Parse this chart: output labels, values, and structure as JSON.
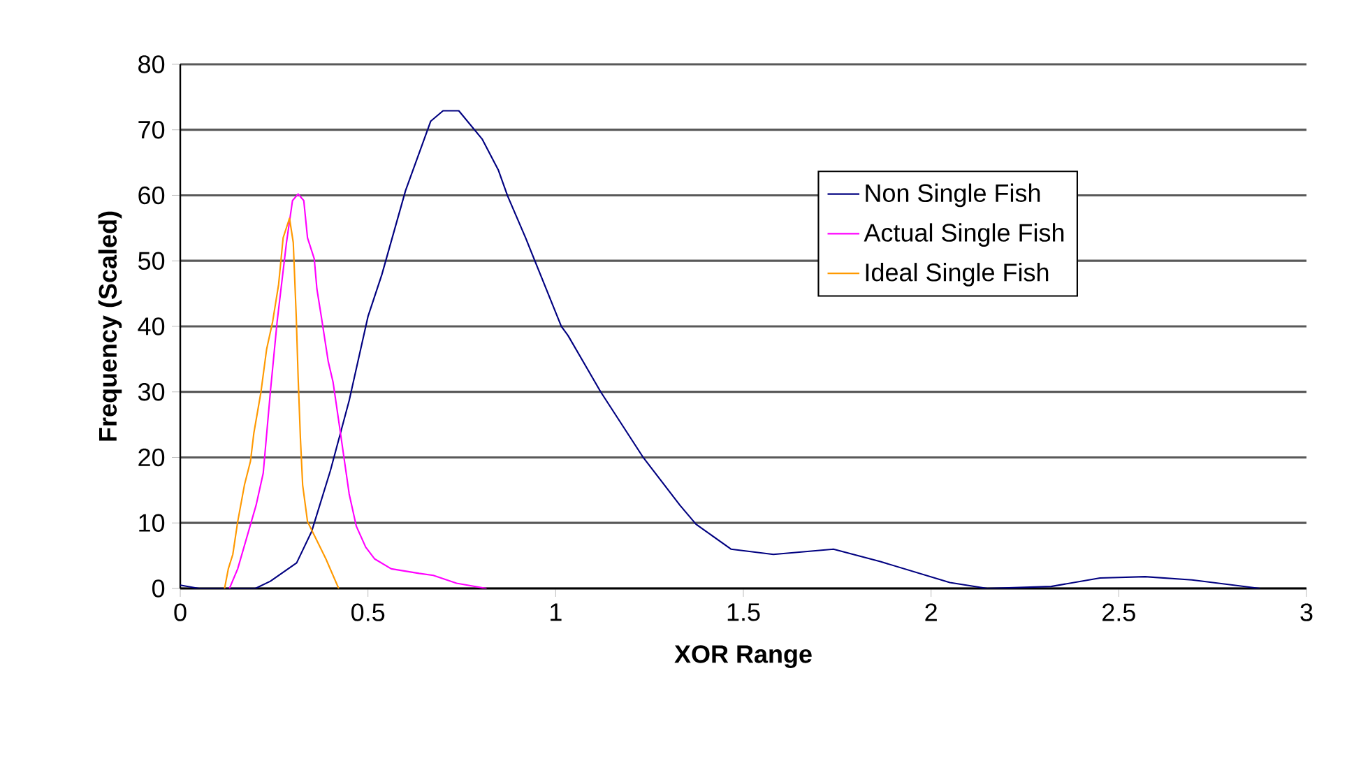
{
  "chart_data": {
    "type": "line",
    "xlabel": "XOR Range",
    "ylabel": "Frequency (Scaled)",
    "xlim": [
      0,
      3
    ],
    "ylim": [
      0,
      80
    ],
    "xticks": [
      0,
      0.5,
      1,
      1.5,
      2,
      2.5,
      3
    ],
    "yticks": [
      0,
      10,
      20,
      30,
      40,
      50,
      60,
      70,
      80
    ],
    "grid": "y",
    "legend": "right",
    "marker": "none",
    "line_style": "solid",
    "series": [
      {
        "name": "Non Single Fish",
        "color": "#000080",
        "x": [
          0,
          0.05,
          0.2,
          0.24,
          0.31,
          0.35,
          0.4,
          0.45,
          0.5,
          0.537,
          0.6,
          0.667,
          0.7,
          0.742,
          0.804,
          0.847,
          0.872,
          0.92,
          1.015,
          1.033,
          1.12,
          1.232,
          1.331,
          1.374,
          1.467,
          1.58,
          1.74,
          1.865,
          2.05,
          2.15,
          2.32,
          2.45,
          2.57,
          2.695,
          2.876
        ],
        "values": [
          0.5,
          0,
          0,
          1.1,
          3.9,
          8.7,
          18,
          28.7,
          41.5,
          47.9,
          60.7,
          71.3,
          72.9,
          72.9,
          68.6,
          63.9,
          59.9,
          53.5,
          40,
          38.6,
          30,
          20.1,
          12.7,
          9.8,
          6,
          5.2,
          6,
          4.1,
          0.9,
          0,
          0.3,
          1.6,
          1.8,
          1.3,
          0
        ]
      },
      {
        "name": "Actual Single Fish",
        "color": "#ff00ff",
        "x": [
          0.131,
          0.153,
          0.202,
          0.221,
          0.24,
          0.258,
          0.283,
          0.299,
          0.314,
          0.329,
          0.339,
          0.357,
          0.364,
          0.376,
          0.394,
          0.407,
          0.425,
          0.45,
          0.469,
          0.494,
          0.518,
          0.562,
          0.636,
          0.674,
          0.736,
          0.816
        ],
        "values": [
          0,
          3,
          12.7,
          17.6,
          30,
          40.7,
          52.8,
          59.2,
          60.2,
          59.2,
          53.5,
          50.3,
          45.7,
          41.4,
          34.7,
          31.5,
          24.4,
          14.4,
          9.5,
          6.3,
          4.5,
          3,
          2.3,
          2,
          0.8,
          0
        ]
      },
      {
        "name": "Ideal Single Fish",
        "color": "#ff9900",
        "x": [
          0.118,
          0.128,
          0.14,
          0.153,
          0.171,
          0.187,
          0.196,
          0.215,
          0.23,
          0.246,
          0.262,
          0.274,
          0.291,
          0.301,
          0.309,
          0.314,
          0.32,
          0.326,
          0.339,
          0.364,
          0.388,
          0.422
        ],
        "values": [
          0,
          3,
          5.2,
          10.2,
          15.8,
          19.4,
          23.7,
          30,
          36.5,
          40.7,
          46.4,
          53.5,
          56.5,
          52.8,
          41.4,
          32.2,
          23,
          15.8,
          10.2,
          7.3,
          4.5,
          0
        ]
      }
    ]
  }
}
